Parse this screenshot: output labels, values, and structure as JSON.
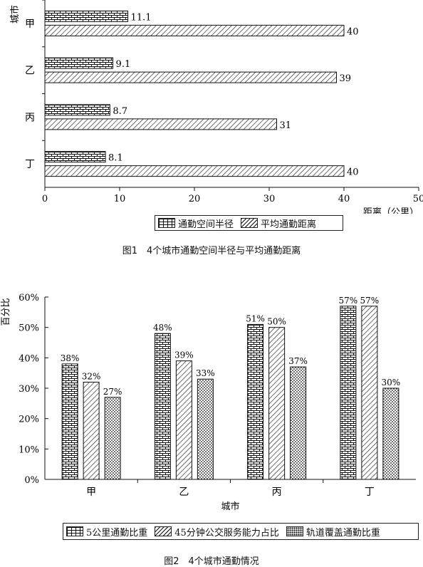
{
  "chart_data": [
    {
      "type": "bar",
      "orientation": "horizontal",
      "title": "图1　4个城市通勤空间半径与平均通勤距离",
      "ylabel": "城市",
      "xlabel": "距离（公里）",
      "categories": [
        "甲",
        "乙",
        "丙",
        "丁"
      ],
      "xlim": [
        0,
        50
      ],
      "xticks": [
        0,
        10,
        20,
        30,
        40,
        50
      ],
      "series": [
        {
          "name": "通勤空间半径",
          "values": [
            11.1,
            9.1,
            8.7,
            8.1
          ],
          "labels": [
            "11.1",
            "9.1",
            "8.7",
            "8.1"
          ],
          "pattern": "brick"
        },
        {
          "name": "平均通勤距离",
          "values": [
            40,
            39,
            31,
            40
          ],
          "labels": [
            "40",
            "39",
            "31",
            "40"
          ],
          "pattern": "hatch"
        }
      ],
      "legend_position": "bottom-right",
      "grid": false
    },
    {
      "type": "bar",
      "orientation": "vertical",
      "title": "图2　4个城市通勤情况",
      "ylabel": "百分比",
      "xlabel": "城市",
      "categories": [
        "甲",
        "乙",
        "丙",
        "丁"
      ],
      "ylim": [
        0,
        60
      ],
      "yticks": [
        "0%",
        "10%",
        "20%",
        "30%",
        "40%",
        "50%",
        "60%"
      ],
      "series": [
        {
          "name": "5公里通勤比重",
          "values": [
            38,
            48,
            51,
            57
          ],
          "labels": [
            "38%",
            "48%",
            "51%",
            "57%"
          ],
          "pattern": "brick"
        },
        {
          "name": "45分钟公交服务能力占比",
          "values": [
            32,
            39,
            50,
            57
          ],
          "labels": [
            "32%",
            "39%",
            "50%",
            "57%"
          ],
          "pattern": "hatch"
        },
        {
          "name": "轨道覆盖通勤比重",
          "values": [
            27,
            33,
            37,
            30
          ],
          "labels": [
            "27%",
            "33%",
            "37%",
            "30%"
          ],
          "pattern": "dots"
        }
      ],
      "legend_position": "bottom",
      "grid": false
    }
  ]
}
